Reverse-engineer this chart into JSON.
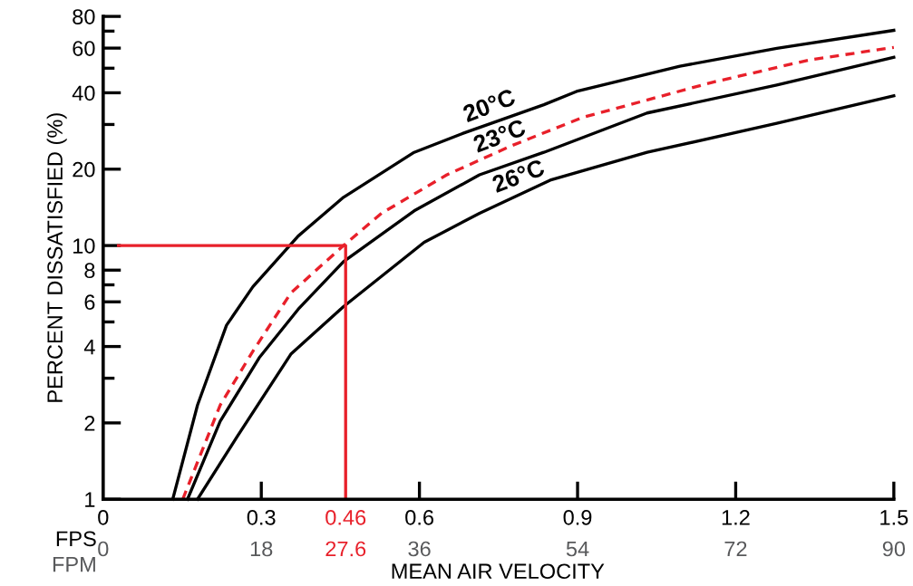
{
  "chart_data": {
    "type": "line",
    "ylabel": "PERCENT DISSATISFIED (%)",
    "xlabel": "FPS",
    "x2label": "FPM",
    "annotations": [
      "20°C",
      "23°C",
      "26°C",
      "MEAN AIR VELOCITY"
    ],
    "log": "y",
    "xlim": [
      0,
      1.5
    ],
    "ylim": [
      1,
      80
    ],
    "xticks": [
      0,
      0.3,
      {
        "value": 0.46,
        "label": "0.46"
      },
      0.6,
      0.9,
      1.2,
      1.5
    ],
    "x2lim": [
      0,
      90
    ],
    "x2ticks": [
      0,
      18,
      {
        "value": 27.6,
        "label": "27.6"
      },
      36,
      54,
      72,
      90
    ],
    "yticks": [
      1,
      2,
      {
        "value": 3,
        "label": null
      },
      4,
      {
        "value": 5,
        "label": null
      },
      6,
      {
        "value": 7,
        "label": null
      },
      8,
      10,
      20,
      {
        "value": 30,
        "label": null
      },
      40,
      {
        "value": 50,
        "label": null
      },
      60,
      {
        "value": 70,
        "label": null
      },
      80
    ],
    "grid": false,
    "legend": false,
    "marker": "none",
    "series": [
      {
        "color": "#000000",
        "line_style": "solid",
        "x": [
          0.132,
          0.179,
          0.234,
          0.284,
          0.37,
          0.456,
          0.59,
          0.683,
          0.836,
          0.898,
          1.094,
          1.278,
          1.5
        ],
        "values": [
          1.0,
          2.35,
          4.85,
          6.88,
          10.9,
          15.5,
          23.3,
          27.7,
          35.9,
          40.5,
          50.9,
          59.9,
          70.5
        ]
      },
      {
        "color": "#e8202a",
        "line_style": "dashed",
        "x": [
          0.151,
          0.222,
          0.284,
          0.356,
          0.456,
          0.528,
          0.652,
          0.774,
          0.91,
          1.156,
          1.34,
          1.5
        ],
        "values": [
          1.0,
          2.35,
          3.83,
          6.5,
          10.0,
          13.4,
          19.0,
          24.7,
          32.0,
          44.0,
          53.9,
          60.4
        ]
      },
      {
        "color": "#000000",
        "line_style": "solid",
        "x": [
          0.16,
          0.222,
          0.296,
          0.37,
          0.456,
          0.59,
          0.714,
          0.836,
          1.032,
          1.278,
          1.5
        ],
        "values": [
          1.0,
          2.03,
          3.61,
          5.61,
          8.64,
          13.7,
          19.0,
          23.3,
          33.3,
          42.9,
          55.2
        ]
      },
      {
        "color": "#000000",
        "line_style": "solid",
        "x": [
          0.179,
          0.253,
          0.356,
          0.456,
          0.609,
          0.714,
          0.848,
          1.032,
          1.278,
          1.5
        ],
        "values": [
          1.0,
          1.75,
          3.73,
          5.75,
          10.3,
          13.4,
          18.1,
          23.3,
          30.3,
          38.9
        ]
      },
      {
        "color": "#e8202a",
        "line_style": "solid",
        "x": [
          0.029,
          0.46,
          0.46
        ],
        "values": [
          10,
          10,
          1
        ]
      }
    ]
  }
}
